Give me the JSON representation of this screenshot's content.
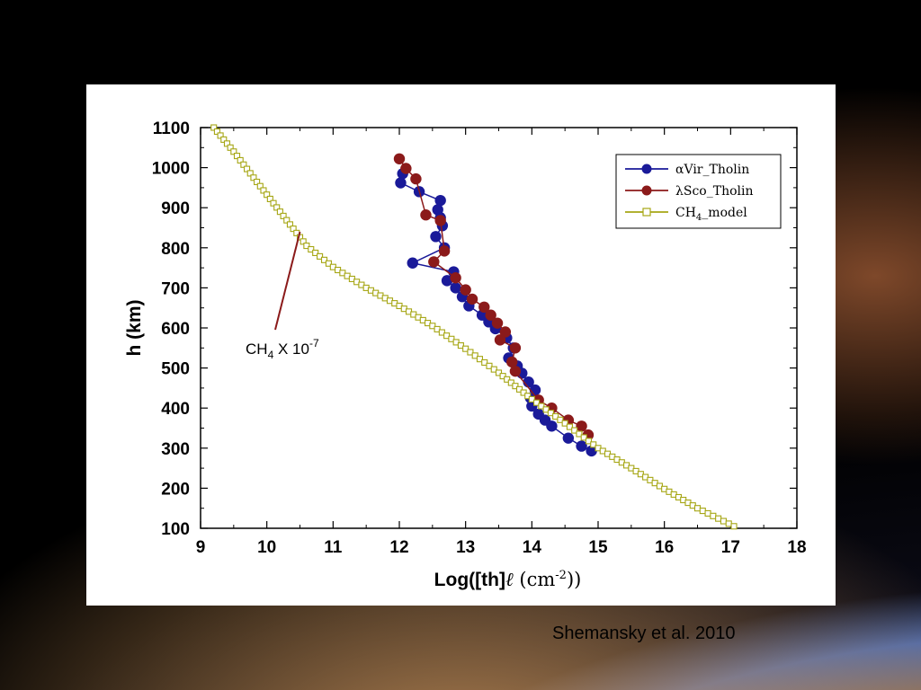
{
  "citation": "Shemansky et al. 2010",
  "chart_data": {
    "type": "scatter",
    "xlabel_parts": [
      "Log([th]",
      "ℓ",
      " (cm",
      "-2",
      "))"
    ],
    "ylabel": "h (km)",
    "xlim": [
      9,
      18
    ],
    "ylim": [
      100,
      1100
    ],
    "xticks": [
      9,
      10,
      11,
      12,
      13,
      14,
      15,
      16,
      17,
      18
    ],
    "yticks": [
      100,
      200,
      300,
      400,
      500,
      600,
      700,
      800,
      900,
      1000,
      1100
    ],
    "grid": false,
    "legend_placement": "top-right",
    "annotation": {
      "base": "CH",
      "sub": "4",
      "mid": " X 10",
      "sup": "-7",
      "point": [
        10.5,
        840
      ]
    },
    "series": [
      {
        "name_parts": [
          "α",
          "Vir_Tholin"
        ],
        "color": "#1a1a99",
        "marker": "circle",
        "points": [
          [
            12.05,
            985
          ],
          [
            12.02,
            962
          ],
          [
            12.3,
            940
          ],
          [
            12.62,
            918
          ],
          [
            12.58,
            895
          ],
          [
            12.62,
            875
          ],
          [
            12.65,
            855
          ],
          [
            12.55,
            828
          ],
          [
            12.68,
            800
          ],
          [
            12.2,
            762
          ],
          [
            12.82,
            740
          ],
          [
            12.72,
            718
          ],
          [
            12.85,
            700
          ],
          [
            12.95,
            678
          ],
          [
            13.05,
            655
          ],
          [
            13.25,
            632
          ],
          [
            13.35,
            615
          ],
          [
            13.45,
            598
          ],
          [
            13.62,
            575
          ],
          [
            13.72,
            550
          ],
          [
            13.65,
            525
          ],
          [
            13.78,
            505
          ],
          [
            13.85,
            487
          ],
          [
            13.95,
            465
          ],
          [
            14.05,
            445
          ],
          [
            13.98,
            425
          ],
          [
            14.0,
            405
          ],
          [
            14.1,
            385
          ],
          [
            14.2,
            370
          ],
          [
            14.3,
            355
          ],
          [
            14.55,
            325
          ],
          [
            14.75,
            305
          ],
          [
            14.9,
            293
          ]
        ]
      },
      {
        "name_parts": [
          "λ",
          "Sco_Tholin"
        ],
        "color": "#8b1a1a",
        "marker": "circle",
        "points": [
          [
            12.0,
            1022
          ],
          [
            12.1,
            998
          ],
          [
            12.25,
            972
          ],
          [
            12.4,
            882
          ],
          [
            12.62,
            868
          ],
          [
            12.68,
            792
          ],
          [
            12.52,
            765
          ],
          [
            12.85,
            725
          ],
          [
            13.0,
            695
          ],
          [
            13.1,
            672
          ],
          [
            13.28,
            652
          ],
          [
            13.38,
            632
          ],
          [
            13.48,
            612
          ],
          [
            13.6,
            590
          ],
          [
            13.52,
            570
          ],
          [
            13.75,
            550
          ],
          [
            13.7,
            515
          ],
          [
            13.75,
            492
          ],
          [
            14.1,
            420
          ],
          [
            14.3,
            400
          ],
          [
            14.55,
            370
          ],
          [
            14.75,
            355
          ],
          [
            14.85,
            333
          ]
        ]
      },
      {
        "name_parts": [
          "CH",
          "4",
          "_model"
        ],
        "color": "#a6a614",
        "marker": "square",
        "curve": [
          [
            9.2,
            1100
          ],
          [
            9.5,
            1040
          ],
          [
            9.8,
            975
          ],
          [
            10.2,
            890
          ],
          [
            10.6,
            805
          ],
          [
            11.0,
            752
          ],
          [
            11.5,
            700
          ],
          [
            12.0,
            655
          ],
          [
            12.5,
            605
          ],
          [
            13.0,
            548
          ],
          [
            13.5,
            488
          ],
          [
            14.0,
            422
          ],
          [
            14.5,
            362
          ],
          [
            15.0,
            300
          ],
          [
            15.5,
            250
          ],
          [
            16.0,
            198
          ],
          [
            16.5,
            150
          ],
          [
            17.05,
            105
          ]
        ]
      }
    ]
  }
}
